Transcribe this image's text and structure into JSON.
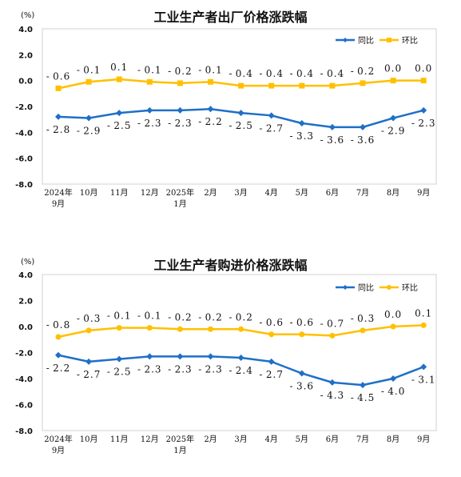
{
  "chart_data": [
    {
      "type": "line",
      "title": "工业生产者出厂价格涨跌幅",
      "ylabel": "(%)",
      "ylim": [
        -8.0,
        4.0
      ],
      "yticks": [
        "4.0",
        "2.0",
        "0.0",
        "-2.0",
        "-4.0",
        "-6.0",
        "-8.0"
      ],
      "categories": [
        [
          "2024年",
          "9月"
        ],
        [
          "10月"
        ],
        [
          "11月"
        ],
        [
          "12月"
        ],
        [
          "2025年",
          "1月"
        ],
        [
          "2月"
        ],
        [
          "3月"
        ],
        [
          "4月"
        ],
        [
          "5月"
        ],
        [
          "6月"
        ],
        [
          "7月"
        ],
        [
          "8月"
        ],
        [
          "9月"
        ]
      ],
      "series": [
        {
          "name": "同比",
          "color": "#1f6fc8",
          "marker": "diamond",
          "values": [
            -2.8,
            -2.9,
            -2.5,
            -2.3,
            -2.3,
            -2.2,
            -2.5,
            -2.7,
            -3.3,
            -3.6,
            -3.6,
            -2.9,
            -2.3
          ],
          "labels": [
            "-2.8",
            "-2.9",
            "-2.5",
            "-2.3",
            "-2.3",
            "-2.2",
            "-2.5",
            "-2.7",
            "-3.3",
            "-3.6",
            "-3.6",
            "-2.9",
            "-2.3"
          ]
        },
        {
          "name": "环比",
          "color": "#ffc000",
          "marker": "square",
          "values": [
            -0.6,
            -0.1,
            0.1,
            -0.1,
            -0.2,
            -0.1,
            -0.4,
            -0.4,
            -0.4,
            -0.4,
            -0.2,
            0.0,
            0.0
          ],
          "labels": [
            "-0.6",
            "-0.1",
            "0.1",
            "-0.1",
            "-0.2",
            "-0.1",
            "-0.4",
            "-0.4",
            "-0.4",
            "-0.4",
            "-0.2",
            "0.0",
            "0.0"
          ]
        }
      ],
      "legend": "top-right",
      "grid": false
    },
    {
      "type": "line",
      "title": "工业生产者购进价格涨跌幅",
      "ylabel": "(%)",
      "ylim": [
        -8.0,
        4.0
      ],
      "yticks": [
        "4.0",
        "2.0",
        "0.0",
        "-2.0",
        "-4.0",
        "-6.0",
        "-8.0"
      ],
      "categories": [
        [
          "2024年",
          "9月"
        ],
        [
          "10月"
        ],
        [
          "11月"
        ],
        [
          "12月"
        ],
        [
          "2025年",
          "1月"
        ],
        [
          "2月"
        ],
        [
          "3月"
        ],
        [
          "4月"
        ],
        [
          "5月"
        ],
        [
          "6月"
        ],
        [
          "7月"
        ],
        [
          "8月"
        ],
        [
          "9月"
        ]
      ],
      "series": [
        {
          "name": "同比",
          "color": "#1f6fc8",
          "marker": "diamond",
          "values": [
            -2.2,
            -2.7,
            -2.5,
            -2.3,
            -2.3,
            -2.3,
            -2.4,
            -2.7,
            -3.6,
            -4.3,
            -4.5,
            -4.0,
            -3.1
          ],
          "labels": [
            "-2.2",
            "-2.7",
            "-2.5",
            "-2.3",
            "-2.3",
            "-2.3",
            "-2.4",
            "-2.7",
            "-3.6",
            "-4.3",
            "-4.5",
            "-4.0",
            "-3.1"
          ]
        },
        {
          "name": "环比",
          "color": "#ffc000",
          "marker": "circle",
          "values": [
            -0.8,
            -0.3,
            -0.1,
            -0.1,
            -0.2,
            -0.2,
            -0.2,
            -0.6,
            -0.6,
            -0.7,
            -0.3,
            0.0,
            0.1
          ],
          "labels": [
            "-0.8",
            "-0.3",
            "-0.1",
            "-0.1",
            "-0.2",
            "-0.2",
            "-0.2",
            "-0.6",
            "-0.6",
            "-0.7",
            "-0.3",
            "0.0",
            "0.1"
          ]
        }
      ],
      "legend": "top-right",
      "grid": false
    }
  ]
}
